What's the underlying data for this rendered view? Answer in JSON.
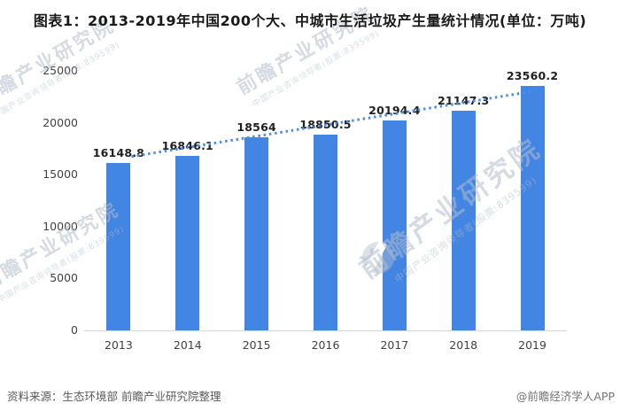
{
  "title": "图表1：2013-2019年中国200个大、中城市生活垃圾产生量统计情况(单位：万吨)",
  "chart_data": {
    "type": "bar",
    "categories": [
      "2013",
      "2014",
      "2015",
      "2016",
      "2017",
      "2018",
      "2019"
    ],
    "values": [
      16148.8,
      16846.1,
      18564,
      18850.5,
      20194.4,
      21147.3,
      23560.2
    ],
    "value_labels": [
      "16148.8",
      "16846.1",
      "18564",
      "18850.5",
      "20194.4",
      "21147.3",
      "23560.2"
    ],
    "ylim": [
      0,
      25000
    ],
    "yticks": [
      0,
      5000,
      10000,
      15000,
      20000,
      25000
    ],
    "xlabel": "",
    "ylabel": "",
    "grid": false,
    "legend": null,
    "bar_color": "#4285e2",
    "axis_line_color": "#d9d9d9",
    "trendline": {
      "style": "dotted",
      "color": "#4b8de6",
      "from_value": 16148.8,
      "to_value": 23560.2
    }
  },
  "footer": {
    "source": "资料来源：生态环境部 前瞻产业研究院整理",
    "credit": "@前瞻经济学人APP"
  },
  "watermark": {
    "brand": "前瞻产业研究院",
    "subtext": "中国产业咨询领导者(股票:839599)",
    "logo": "qianzhan-globe-logo"
  }
}
